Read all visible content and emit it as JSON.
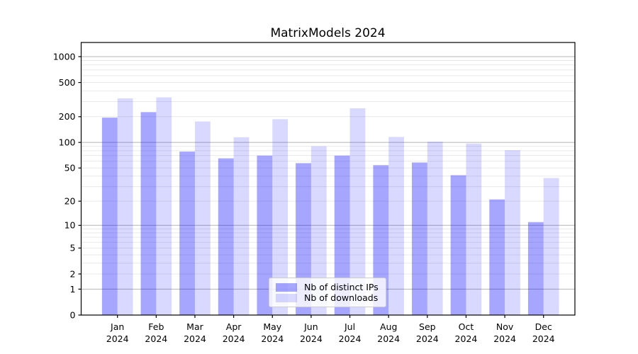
{
  "chart_data": {
    "type": "bar",
    "title": "MatrixModels 2024",
    "categories": [
      "Jan 2024",
      "Feb 2024",
      "Mar 2024",
      "Apr 2024",
      "May 2024",
      "Jun 2024",
      "Jul 2024",
      "Aug 2024",
      "Sep 2024",
      "Oct 2024",
      "Nov 2024",
      "Dec 2024"
    ],
    "series": [
      {
        "name": "Nb of distinct IPs",
        "color": "rgba(0,0,255,0.35)",
        "values": [
          195,
          226,
          78,
          65,
          70,
          57,
          70,
          54,
          58,
          41,
          21,
          11
        ]
      },
      {
        "name": "Nb of downloads",
        "color": "rgba(0,0,255,0.15)",
        "values": [
          327,
          336,
          176,
          115,
          187,
          90,
          251,
          116,
          102,
          97,
          81,
          38
        ]
      }
    ],
    "xlabel": "",
    "ylabel": "",
    "yscale": "log1p",
    "yticks": [
      0,
      1,
      2,
      5,
      10,
      20,
      50,
      100,
      200,
      500,
      1000
    ],
    "ylim": [
      0,
      1460
    ],
    "grid": "horizontal major and log-minor gridlines",
    "legend_position": "lower center inside axes"
  }
}
